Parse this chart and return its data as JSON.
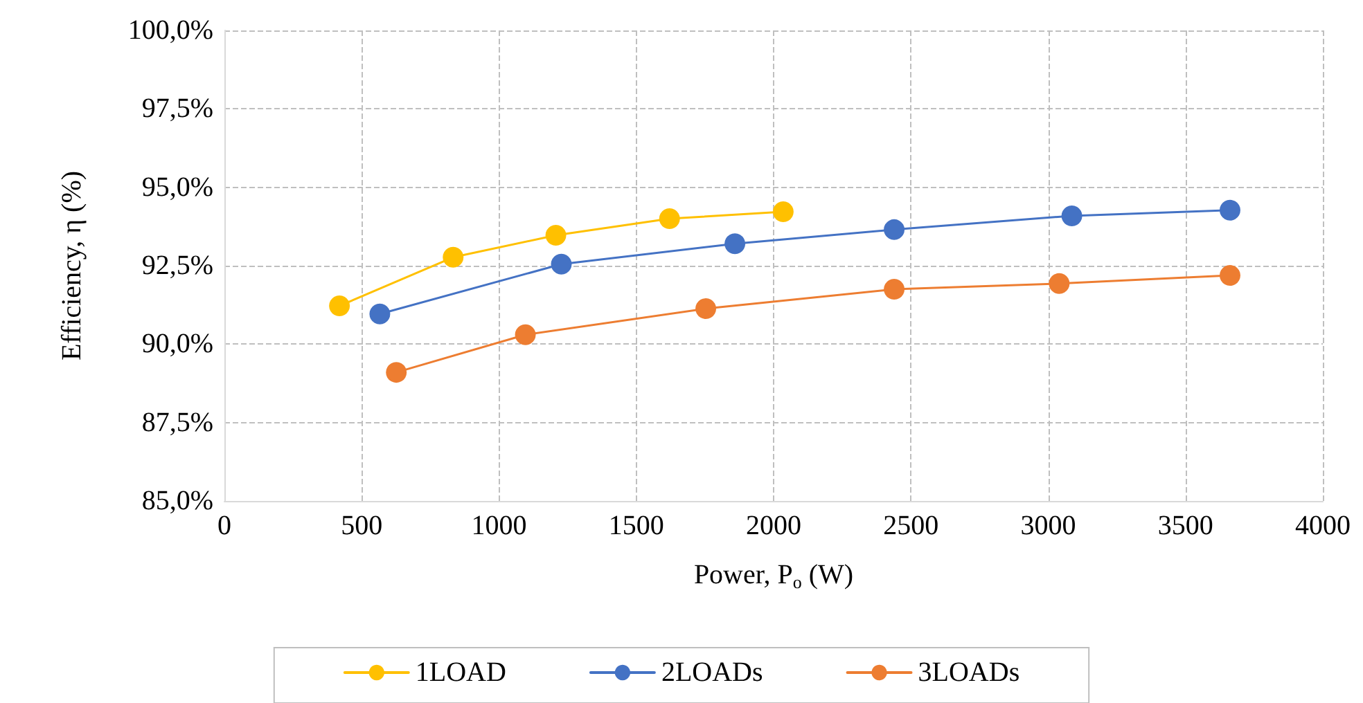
{
  "chart_data": {
    "type": "line",
    "xlabel": "Power, P$_{o}$ (W)",
    "ylabel": "Efficiency, η (%)",
    "xlim": [
      0,
      4000
    ],
    "xticks": [
      0,
      500,
      1000,
      1500,
      2000,
      2500,
      3000,
      3500,
      4000
    ],
    "ylim": [
      85,
      100
    ],
    "yticks": [
      {
        "value": 85,
        "label": "85,0%"
      },
      {
        "value": 87.5,
        "label": "87,5%"
      },
      {
        "value": 90,
        "label": "90,0%"
      },
      {
        "value": 92.5,
        "label": "92,5%"
      },
      {
        "value": 95,
        "label": "95,0%"
      },
      {
        "value": 97.5,
        "label": "97,5%"
      },
      {
        "value": 100,
        "label": "100,0%"
      }
    ],
    "grid": true,
    "legend": "bottom",
    "marker": "circle",
    "line_style": "solid",
    "series": [
      {
        "name": "1LOAD",
        "color": "#ffc000",
        "x": [
          419,
          833,
          1207,
          1621,
          2035
        ],
        "values": [
          91.22,
          92.77,
          93.47,
          94.0,
          94.22
        ]
      },
      {
        "name": "2LOADs",
        "color": "#4472c4",
        "x": [
          566,
          1227,
          1859,
          2439,
          3086,
          3662
        ],
        "values": [
          90.96,
          92.55,
          93.2,
          93.65,
          94.09,
          94.27
        ]
      },
      {
        "name": "3LOADs",
        "color": "#ed7d31",
        "x": [
          626,
          1096,
          1753,
          2439,
          3040,
          3662
        ],
        "values": [
          89.1,
          90.3,
          91.13,
          91.75,
          91.93,
          92.19
        ]
      }
    ]
  }
}
